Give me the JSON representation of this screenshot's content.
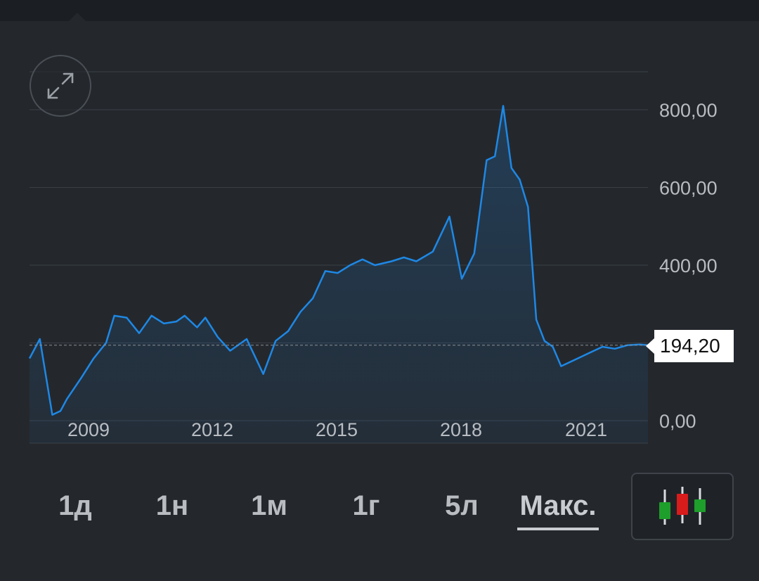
{
  "colors": {
    "background": "#24282d",
    "line": "#1e88e5",
    "grid": "#3a3f46",
    "axis_text": "#b9bdc2",
    "price_tag_bg": "#ffffff",
    "candle_up": "#1e9e2a",
    "candle_down": "#d81b1b"
  },
  "price_tag": "194,20",
  "controls": {
    "expand_icon": "expand-arrows-icon",
    "chart_type_icon": "candlestick-icon"
  },
  "range_tabs": [
    {
      "label": "1д",
      "active": false
    },
    {
      "label": "1н",
      "active": false
    },
    {
      "label": "1м",
      "active": false
    },
    {
      "label": "1г",
      "active": false
    },
    {
      "label": "5л",
      "active": false
    },
    {
      "label": "Макс.",
      "active": true
    }
  ],
  "chart_data": {
    "type": "area",
    "title": "",
    "xlabel": "",
    "ylabel": "",
    "x_ticks": [
      "2009",
      "2012",
      "2015",
      "2018",
      "2021"
    ],
    "y_ticks": [
      "0,00",
      "400,00",
      "600,00",
      "800,00"
    ],
    "ylim": [
      0,
      800
    ],
    "xlim": [
      2008.25,
      2023.2
    ],
    "grid": true,
    "reference_line": 194.2,
    "series": [
      {
        "x": [
          2008.25,
          2008.5,
          2008.8,
          2009.0,
          2009.15,
          2009.5,
          2009.8,
          2010.1,
          2010.3,
          2010.6,
          2010.9,
          2011.2,
          2011.5,
          2011.8,
          2012.0,
          2012.3,
          2012.5,
          2012.8,
          2013.1,
          2013.5,
          2013.9,
          2014.2,
          2014.5,
          2014.8,
          2015.1,
          2015.4,
          2015.7,
          2016.0,
          2016.3,
          2016.6,
          2017.0,
          2017.3,
          2017.6,
          2018.0,
          2018.4,
          2018.7,
          2019.0,
          2019.3,
          2019.5,
          2019.7,
          2019.9,
          2020.1,
          2020.3,
          2020.5,
          2020.7,
          2020.9,
          2021.1,
          2021.3,
          2021.5,
          2021.8,
          2022.1,
          2022.4,
          2022.7,
          2023.0,
          2023.2
        ],
        "y": [
          160,
          210,
          15,
          25,
          55,
          110,
          160,
          200,
          270,
          265,
          225,
          270,
          250,
          255,
          270,
          240,
          265,
          215,
          180,
          210,
          120,
          205,
          230,
          280,
          315,
          385,
          380,
          400,
          415,
          400,
          410,
          420,
          410,
          435,
          525,
          365,
          430,
          670,
          680,
          810,
          650,
          620,
          550,
          260,
          205,
          190,
          140,
          150,
          160,
          175,
          190,
          185,
          194,
          196,
          194.2
        ]
      }
    ]
  }
}
